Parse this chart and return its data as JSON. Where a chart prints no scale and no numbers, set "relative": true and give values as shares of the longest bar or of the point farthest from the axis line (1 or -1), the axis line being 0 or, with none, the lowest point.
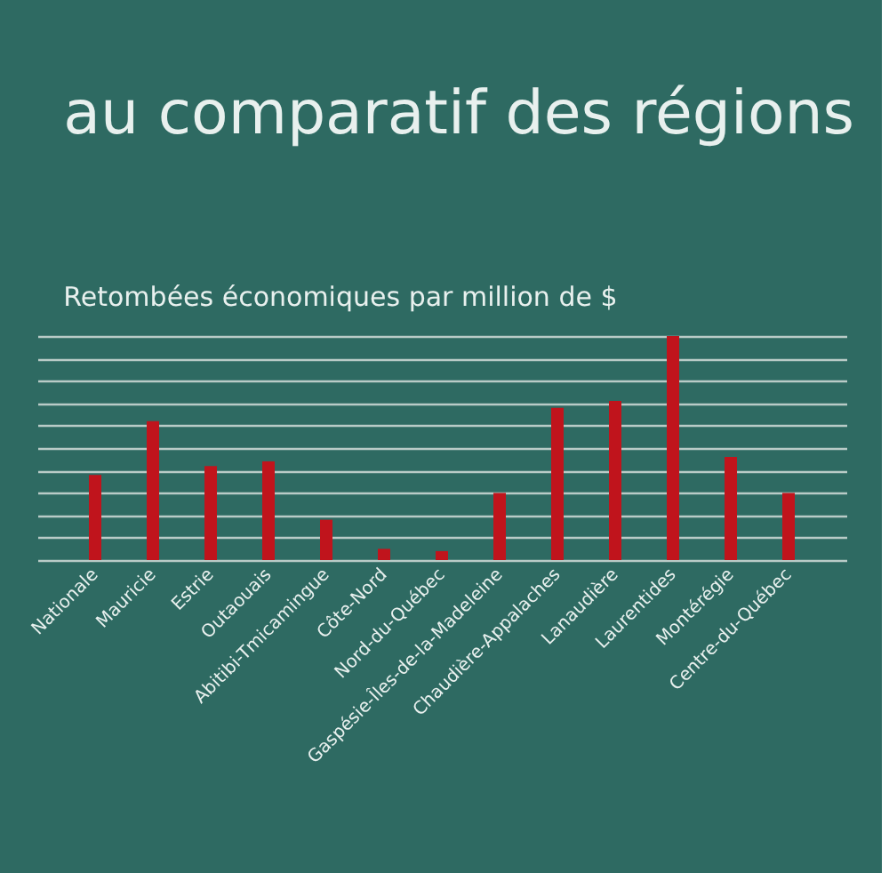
{
  "chart_data": {
    "type": "bar",
    "title": "au comparatif des régions",
    "subtitle": "Retombées économiques par million de $",
    "categories": [
      "Nationale",
      "Mauricie",
      "Estrie",
      "Outaouais",
      "Abitibi-Tmicamingue",
      "Côte-Nord",
      "Nord-du-Québec",
      "Gaspésie-Îles-de-la-Madeleine",
      "Chaudière-Appalaches",
      "Lanaudière",
      "Laurentides",
      "Montérégie",
      "Centre-du-Québec"
    ],
    "values": [
      0.38,
      0.62,
      0.42,
      0.44,
      0.18,
      0.05,
      0.04,
      0.3,
      0.68,
      0.71,
      1,
      0.46,
      0.3
    ],
    "color": "#c0141c",
    "relative": true,
    "grid": "y"
  }
}
